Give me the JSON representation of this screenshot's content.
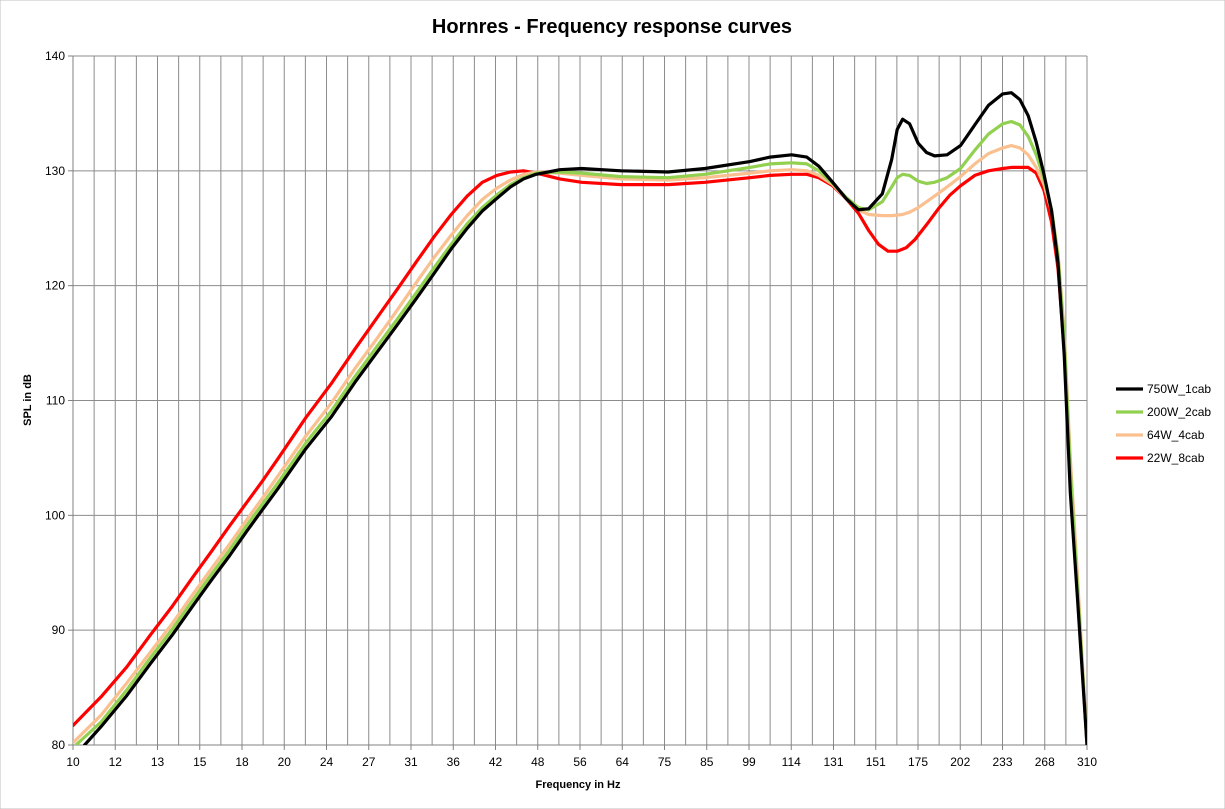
{
  "chart_data": {
    "type": "line",
    "title": "Hornres - Frequency response curves",
    "xlabel": "Frequency in Hz",
    "ylabel": "SPL in dB",
    "x_ticks": [
      "10",
      "12",
      "13",
      "15",
      "18",
      "20",
      "24",
      "27",
      "31",
      "36",
      "42",
      "48",
      "56",
      "64",
      "75",
      "85",
      "99",
      "114",
      "131",
      "151",
      "175",
      "202",
      "233",
      "268",
      "310"
    ],
    "ylim": [
      80,
      140
    ],
    "y_ticks": [
      "80",
      "90",
      "100",
      "110",
      "120",
      "130",
      "140"
    ],
    "grid": true,
    "legend_position": "right",
    "series": [
      {
        "name": "750W_1cab",
        "color": "#000000",
        "points": [
          [
            10.4,
            80
          ],
          [
            11,
            81.6
          ],
          [
            12,
            84.3
          ],
          [
            13,
            87.1
          ],
          [
            14,
            89.6
          ],
          [
            15,
            92.1
          ],
          [
            16,
            94.4
          ],
          [
            17,
            96.5
          ],
          [
            18,
            98.6
          ],
          [
            19,
            100.5
          ],
          [
            20,
            102.3
          ],
          [
            22,
            105.8
          ],
          [
            24,
            108.6
          ],
          [
            26,
            111.6
          ],
          [
            28,
            114.2
          ],
          [
            30,
            116.6
          ],
          [
            32,
            118.9
          ],
          [
            34,
            121.1
          ],
          [
            36,
            123.2
          ],
          [
            38,
            125
          ],
          [
            40,
            126.5
          ],
          [
            42,
            127.6
          ],
          [
            44,
            128.6
          ],
          [
            46,
            129.3
          ],
          [
            48,
            129.7
          ],
          [
            52,
            130.1
          ],
          [
            56,
            130.2
          ],
          [
            64,
            130
          ],
          [
            75,
            129.9
          ],
          [
            85,
            130.2
          ],
          [
            99,
            130.8
          ],
          [
            106,
            131.2
          ],
          [
            114,
            131.4
          ],
          [
            120,
            131.2
          ],
          [
            125,
            130.4
          ],
          [
            131,
            129
          ],
          [
            137,
            127.6
          ],
          [
            143,
            126.6
          ],
          [
            148,
            126.7
          ],
          [
            155,
            128
          ],
          [
            160,
            131
          ],
          [
            163,
            133.6
          ],
          [
            166,
            134.5
          ],
          [
            170,
            134.1
          ],
          [
            175,
            132.4
          ],
          [
            180,
            131.6
          ],
          [
            185,
            131.3
          ],
          [
            193,
            131.4
          ],
          [
            202,
            132.2
          ],
          [
            212,
            134
          ],
          [
            222,
            135.7
          ],
          [
            233,
            136.7
          ],
          [
            240,
            136.8
          ],
          [
            247,
            136.2
          ],
          [
            254,
            134.8
          ],
          [
            261,
            132.5
          ],
          [
            268,
            129.7
          ],
          [
            275,
            126.5
          ],
          [
            281,
            122
          ],
          [
            287,
            114
          ],
          [
            293,
            102
          ],
          [
            300,
            93
          ],
          [
            310,
            80
          ]
        ]
      },
      {
        "name": "200W_2cab",
        "color": "#92D050",
        "points": [
          [
            10.1,
            80
          ],
          [
            11,
            82
          ],
          [
            12,
            84.8
          ],
          [
            13,
            87.6
          ],
          [
            14,
            90.1
          ],
          [
            15,
            92.6
          ],
          [
            16,
            94.9
          ],
          [
            17,
            97
          ],
          [
            18,
            99.1
          ],
          [
            19,
            101
          ],
          [
            20,
            102.8
          ],
          [
            22,
            106.3
          ],
          [
            24,
            109.1
          ],
          [
            26,
            112.1
          ],
          [
            28,
            114.7
          ],
          [
            30,
            117.1
          ],
          [
            32,
            119.4
          ],
          [
            34,
            121.6
          ],
          [
            36,
            123.6
          ],
          [
            38,
            125.4
          ],
          [
            40,
            126.8
          ],
          [
            42,
            127.9
          ],
          [
            44,
            128.8
          ],
          [
            46,
            129.4
          ],
          [
            48,
            129.8
          ],
          [
            52,
            129.9
          ],
          [
            56,
            129.8
          ],
          [
            64,
            129.5
          ],
          [
            75,
            129.4
          ],
          [
            85,
            129.7
          ],
          [
            99,
            130.3
          ],
          [
            106,
            130.6
          ],
          [
            114,
            130.7
          ],
          [
            120,
            130.6
          ],
          [
            125,
            130
          ],
          [
            131,
            128.9
          ],
          [
            137,
            127.7
          ],
          [
            143,
            126.8
          ],
          [
            148,
            126.6
          ],
          [
            155,
            127.3
          ],
          [
            160,
            128.6
          ],
          [
            163,
            129.4
          ],
          [
            166,
            129.7
          ],
          [
            170,
            129.6
          ],
          [
            175,
            129.1
          ],
          [
            180,
            128.9
          ],
          [
            185,
            129
          ],
          [
            193,
            129.4
          ],
          [
            202,
            130.2
          ],
          [
            212,
            131.8
          ],
          [
            222,
            133.2
          ],
          [
            233,
            134.1
          ],
          [
            240,
            134.3
          ],
          [
            247,
            134
          ],
          [
            254,
            133
          ],
          [
            261,
            131.4
          ],
          [
            268,
            129.3
          ],
          [
            275,
            126.6
          ],
          [
            281,
            122.6
          ],
          [
            287,
            115.5
          ],
          [
            293,
            104
          ],
          [
            300,
            94
          ],
          [
            310,
            80
          ]
        ]
      },
      {
        "name": "64W_4cab",
        "color": "#FAC090",
        "points": [
          [
            10,
            80.2
          ],
          [
            11,
            82.6
          ],
          [
            12,
            85.4
          ],
          [
            13,
            88.1
          ],
          [
            14,
            90.6
          ],
          [
            15,
            93.1
          ],
          [
            16,
            95.4
          ],
          [
            17,
            97.5
          ],
          [
            18,
            99.6
          ],
          [
            19,
            101.5
          ],
          [
            20,
            103.4
          ],
          [
            22,
            106.9
          ],
          [
            24,
            109.8
          ],
          [
            26,
            112.8
          ],
          [
            28,
            115.4
          ],
          [
            30,
            117.9
          ],
          [
            32,
            120.3
          ],
          [
            34,
            122.5
          ],
          [
            36,
            124.4
          ],
          [
            38,
            126.1
          ],
          [
            40,
            127.5
          ],
          [
            42,
            128.5
          ],
          [
            44,
            129.2
          ],
          [
            46,
            129.7
          ],
          [
            48,
            129.9
          ],
          [
            52,
            129.8
          ],
          [
            56,
            129.6
          ],
          [
            64,
            129.3
          ],
          [
            75,
            129.2
          ],
          [
            85,
            129.4
          ],
          [
            99,
            129.8
          ],
          [
            106,
            130
          ],
          [
            114,
            130.1
          ],
          [
            120,
            130
          ],
          [
            125,
            129.6
          ],
          [
            131,
            128.8
          ],
          [
            137,
            127.6
          ],
          [
            143,
            126.6
          ],
          [
            148,
            126.2
          ],
          [
            155,
            126.1
          ],
          [
            160,
            126.1
          ],
          [
            166,
            126.2
          ],
          [
            170,
            126.4
          ],
          [
            175,
            126.8
          ],
          [
            180,
            127.3
          ],
          [
            185,
            127.8
          ],
          [
            193,
            128.6
          ],
          [
            202,
            129.5
          ],
          [
            212,
            130.6
          ],
          [
            222,
            131.5
          ],
          [
            233,
            132
          ],
          [
            240,
            132.2
          ],
          [
            247,
            132
          ],
          [
            254,
            131.4
          ],
          [
            261,
            130.3
          ],
          [
            268,
            128.8
          ],
          [
            275,
            126.5
          ],
          [
            281,
            122.8
          ],
          [
            287,
            116
          ],
          [
            293,
            105
          ],
          [
            300,
            95
          ],
          [
            310,
            80
          ]
        ]
      },
      {
        "name": "22W_8cab",
        "color": "#FF0000",
        "points": [
          [
            10,
            81.7
          ],
          [
            11,
            84.2
          ],
          [
            12,
            86.8
          ],
          [
            13,
            89.6
          ],
          [
            14,
            92.1
          ],
          [
            15,
            94.6
          ],
          [
            16,
            96.9
          ],
          [
            17,
            99.1
          ],
          [
            18,
            101.1
          ],
          [
            19,
            103
          ],
          [
            20,
            104.9
          ],
          [
            22,
            108.5
          ],
          [
            24,
            111.5
          ],
          [
            26,
            114.5
          ],
          [
            28,
            117.2
          ],
          [
            30,
            119.7
          ],
          [
            32,
            122.1
          ],
          [
            34,
            124.3
          ],
          [
            36,
            126.2
          ],
          [
            38,
            127.8
          ],
          [
            40,
            129
          ],
          [
            42,
            129.6
          ],
          [
            44,
            129.9
          ],
          [
            46,
            130
          ],
          [
            48,
            129.8
          ],
          [
            52,
            129.3
          ],
          [
            56,
            129
          ],
          [
            64,
            128.8
          ],
          [
            75,
            128.8
          ],
          [
            85,
            129
          ],
          [
            99,
            129.4
          ],
          [
            106,
            129.6
          ],
          [
            114,
            129.7
          ],
          [
            120,
            129.7
          ],
          [
            125,
            129.4
          ],
          [
            131,
            128.7
          ],
          [
            137,
            127.6
          ],
          [
            143,
            126.3
          ],
          [
            148,
            124.8
          ],
          [
            153,
            123.6
          ],
          [
            158,
            123
          ],
          [
            163,
            123
          ],
          [
            168,
            123.3
          ],
          [
            173,
            124
          ],
          [
            180,
            125.3
          ],
          [
            188,
            126.8
          ],
          [
            195,
            127.9
          ],
          [
            202,
            128.7
          ],
          [
            212,
            129.6
          ],
          [
            222,
            130
          ],
          [
            233,
            130.2
          ],
          [
            240,
            130.3
          ],
          [
            247,
            130.3
          ],
          [
            254,
            130.3
          ],
          [
            261,
            129.8
          ],
          [
            268,
            128.3
          ],
          [
            275,
            125.5
          ],
          [
            281,
            121.5
          ],
          [
            287,
            114.5
          ],
          [
            293,
            104
          ],
          [
            300,
            94
          ],
          [
            310,
            80
          ]
        ]
      }
    ]
  }
}
